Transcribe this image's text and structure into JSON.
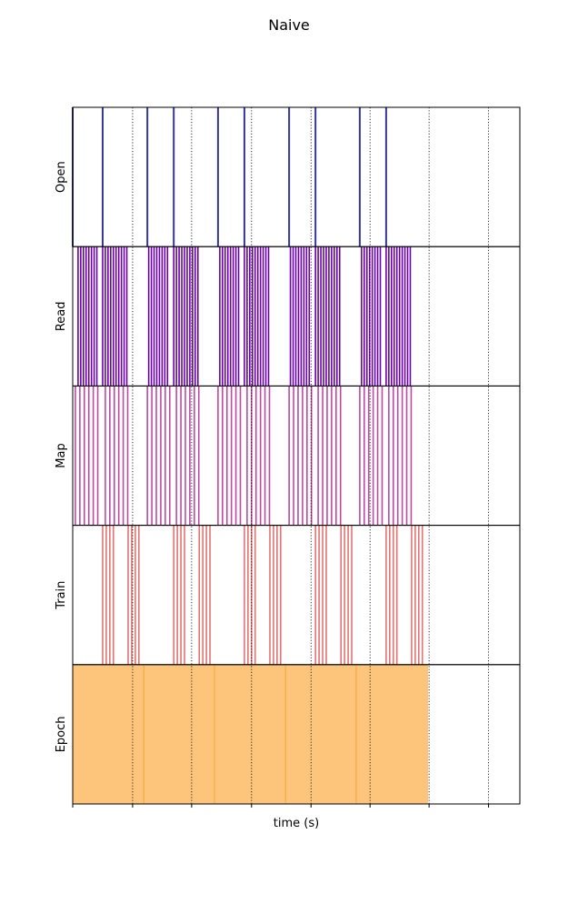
{
  "chart_data": {
    "type": "timeline",
    "title": "Naive",
    "xlabel": "time (s)",
    "xlim": [
      0,
      1
    ],
    "grid": "vertical dotted",
    "rows": [
      {
        "name": "Open",
        "color": "#353795"
      },
      {
        "name": "Read",
        "color": "#6a00a8"
      },
      {
        "name": "Map",
        "color": "#b12a90"
      },
      {
        "name": "Train",
        "color": "#e16462"
      },
      {
        "name": "Epoch",
        "color": "#fca636"
      }
    ],
    "xticks": [
      0,
      0.134,
      0.266,
      0.4,
      0.533,
      0.665,
      0.797,
      0.93
    ],
    "xtick_labels": [
      "",
      "",
      "",
      "",
      "",
      "",
      "",
      ""
    ],
    "epochs": [
      {
        "start": 0.0,
        "end": 0.159
      },
      {
        "start": 0.159,
        "end": 0.317
      },
      {
        "start": 0.317,
        "end": 0.476
      },
      {
        "start": 0.476,
        "end": 0.634
      },
      {
        "start": 0.634,
        "end": 0.795
      }
    ],
    "events": {
      "Open": [
        0.0,
        0.067,
        0.167,
        0.226,
        0.325,
        0.384,
        0.484,
        0.543,
        0.642,
        0.701
      ],
      "Read": [
        0.012,
        0.018,
        0.024,
        0.03,
        0.036,
        0.042,
        0.048,
        0.054,
        0.067,
        0.073,
        0.079,
        0.085,
        0.091,
        0.097,
        0.103,
        0.109,
        0.115,
        0.121,
        0.17,
        0.176,
        0.182,
        0.188,
        0.194,
        0.2,
        0.206,
        0.212,
        0.226,
        0.232,
        0.238,
        0.244,
        0.25,
        0.256,
        0.262,
        0.268,
        0.274,
        0.28,
        0.329,
        0.335,
        0.341,
        0.347,
        0.353,
        0.359,
        0.365,
        0.371,
        0.384,
        0.39,
        0.396,
        0.402,
        0.408,
        0.414,
        0.42,
        0.426,
        0.432,
        0.438,
        0.487,
        0.493,
        0.499,
        0.505,
        0.511,
        0.517,
        0.523,
        0.529,
        0.543,
        0.549,
        0.555,
        0.561,
        0.567,
        0.573,
        0.579,
        0.585,
        0.591,
        0.597,
        0.646,
        0.652,
        0.658,
        0.664,
        0.67,
        0.676,
        0.682,
        0.688,
        0.701,
        0.707,
        0.713,
        0.719,
        0.725,
        0.731,
        0.737,
        0.743,
        0.749,
        0.755
      ],
      "Map": [
        0.006,
        0.016,
        0.026,
        0.036,
        0.046,
        0.056,
        0.073,
        0.083,
        0.093,
        0.103,
        0.113,
        0.123,
        0.167,
        0.177,
        0.187,
        0.197,
        0.207,
        0.217,
        0.232,
        0.242,
        0.252,
        0.262,
        0.272,
        0.282,
        0.325,
        0.335,
        0.345,
        0.355,
        0.365,
        0.375,
        0.39,
        0.4,
        0.41,
        0.42,
        0.43,
        0.44,
        0.484,
        0.494,
        0.504,
        0.514,
        0.524,
        0.534,
        0.549,
        0.559,
        0.569,
        0.579,
        0.589,
        0.599,
        0.642,
        0.652,
        0.662,
        0.672,
        0.682,
        0.692,
        0.707,
        0.717,
        0.727,
        0.737,
        0.747,
        0.757
      ],
      "Train": [
        0.067,
        0.075,
        0.083,
        0.091,
        0.124,
        0.132,
        0.14,
        0.148,
        0.226,
        0.234,
        0.242,
        0.25,
        0.283,
        0.291,
        0.299,
        0.307,
        0.384,
        0.392,
        0.4,
        0.408,
        0.441,
        0.449,
        0.457,
        0.465,
        0.543,
        0.551,
        0.559,
        0.567,
        0.6,
        0.608,
        0.616,
        0.624,
        0.701,
        0.709,
        0.717,
        0.725,
        0.758,
        0.766,
        0.774,
        0.782
      ]
    }
  }
}
